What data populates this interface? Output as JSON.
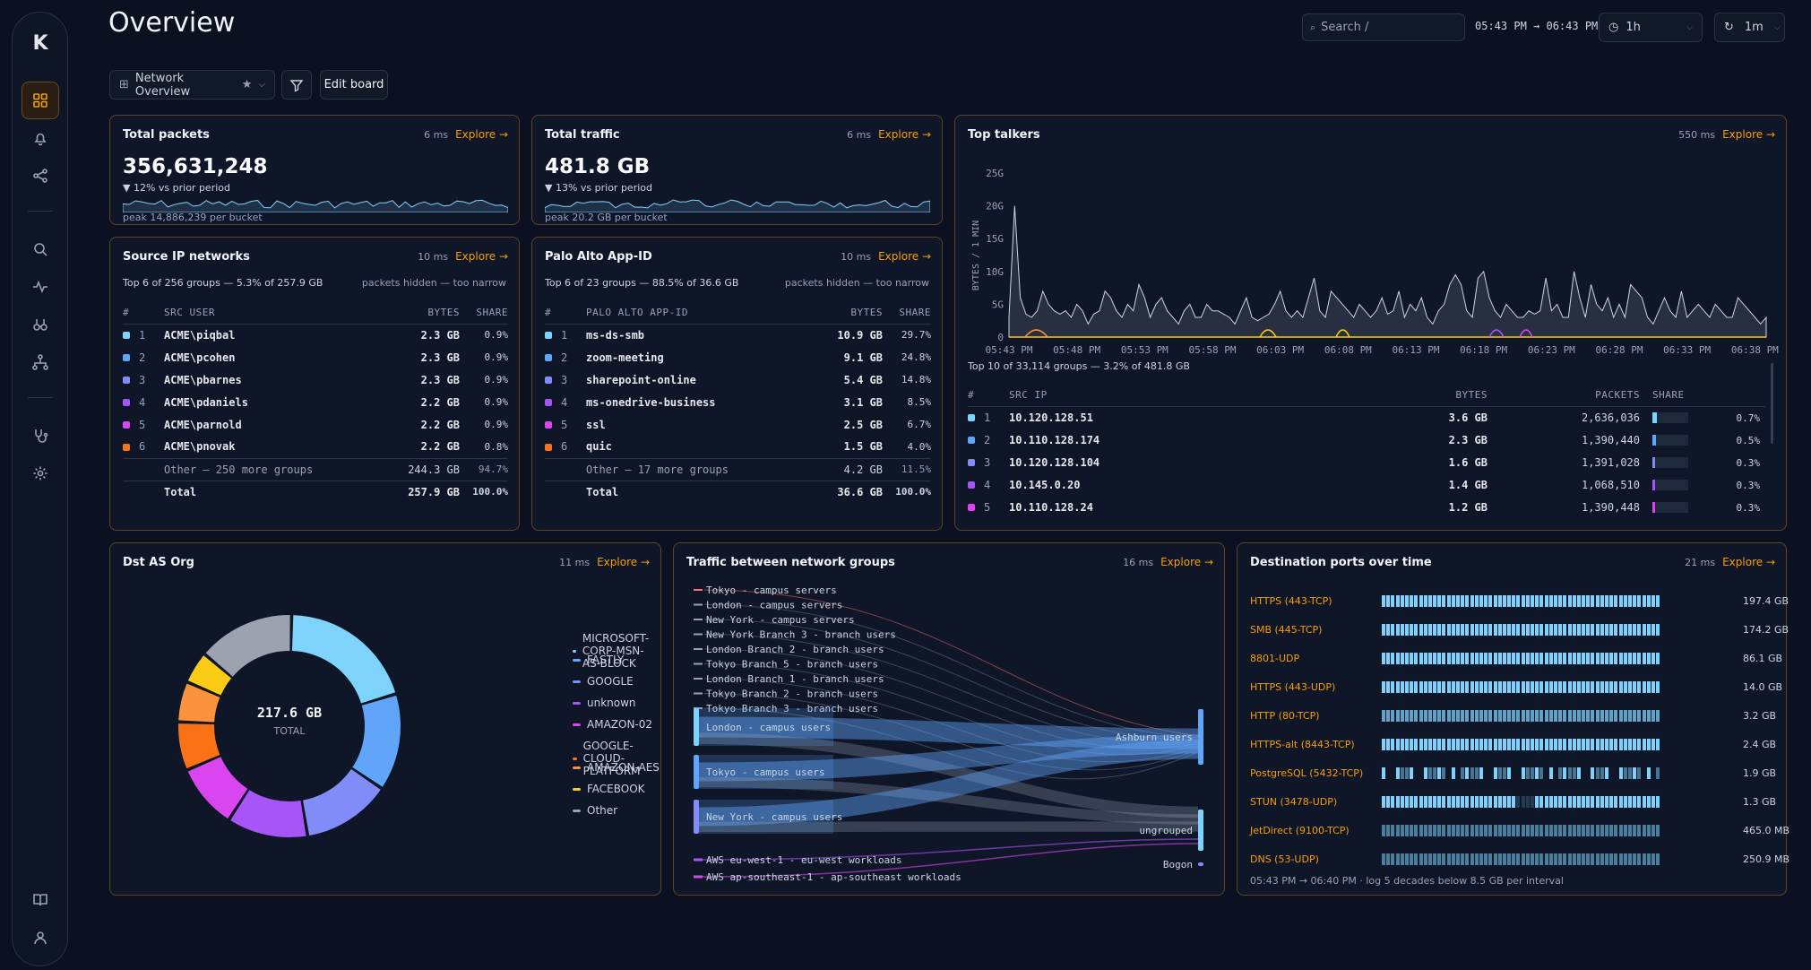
{
  "header": {
    "title": "Overview",
    "search_placeholder": "Search /",
    "time_range": "05:43 PM → 06:43 PM",
    "range_label": "1h",
    "refresh_label": "1m"
  },
  "toolbar": {
    "board_name": "Network Overview",
    "edit_label": "Edit board"
  },
  "colors": {
    "accent": "#f59e0b",
    "series": [
      "#7dd3fc",
      "#60a5fa",
      "#818cf8",
      "#a855f7",
      "#d946ef",
      "#f97316",
      "#fb923c",
      "#facc15",
      "#9ca3af"
    ]
  },
  "total_packets": {
    "title": "Total packets",
    "ms": "6 ms",
    "explore": "Explore →",
    "value": "356,631,248",
    "delta": "▼ 12% vs prior period",
    "peak": "peak 14,886,239 per bucket"
  },
  "total_traffic": {
    "title": "Total traffic",
    "ms": "6 ms",
    "explore": "Explore →",
    "value": "481.8 GB",
    "delta": "▼ 13% vs prior period",
    "peak": "peak 20.2 GB per bucket"
  },
  "source_ip": {
    "title": "Source IP networks",
    "ms": "10 ms",
    "explore": "Explore →",
    "summary": "Top 6 of 256 groups — 5.3% of 257.9 GB",
    "note": "packets hidden — too narrow",
    "columns": [
      "#",
      "SRC USER",
      "BYTES",
      "SHARE"
    ],
    "rows": [
      {
        "n": "1",
        "name": "ACME\\piqbal",
        "bytes": "2.3 GB",
        "share": "0.9%"
      },
      {
        "n": "2",
        "name": "ACME\\pcohen",
        "bytes": "2.3 GB",
        "share": "0.9%"
      },
      {
        "n": "3",
        "name": "ACME\\pbarnes",
        "bytes": "2.3 GB",
        "share": "0.9%"
      },
      {
        "n": "4",
        "name": "ACME\\pdaniels",
        "bytes": "2.2 GB",
        "share": "0.9%"
      },
      {
        "n": "5",
        "name": "ACME\\parnold",
        "bytes": "2.2 GB",
        "share": "0.9%"
      },
      {
        "n": "6",
        "name": "ACME\\pnovak",
        "bytes": "2.2 GB",
        "share": "0.8%"
      }
    ],
    "other": {
      "name": "Other — 250 more groups",
      "bytes": "244.3 GB",
      "share": "94.7%"
    },
    "total": {
      "name": "Total",
      "bytes": "257.9 GB",
      "share": "100.0%"
    }
  },
  "palo_alto": {
    "title": "Palo Alto App-ID",
    "ms": "10 ms",
    "explore": "Explore →",
    "summary": "Top 6 of 23 groups — 88.5% of 36.6 GB",
    "note": "packets hidden — too narrow",
    "columns": [
      "#",
      "PALO ALTO APP-ID",
      "BYTES",
      "SHARE"
    ],
    "rows": [
      {
        "n": "1",
        "name": "ms-ds-smb",
        "bytes": "10.9 GB",
        "share": "29.7%"
      },
      {
        "n": "2",
        "name": "zoom-meeting",
        "bytes": "9.1 GB",
        "share": "24.8%"
      },
      {
        "n": "3",
        "name": "sharepoint-online",
        "bytes": "5.4 GB",
        "share": "14.8%"
      },
      {
        "n": "4",
        "name": "ms-onedrive-business",
        "bytes": "3.1 GB",
        "share": "8.5%"
      },
      {
        "n": "5",
        "name": "ssl",
        "bytes": "2.5 GB",
        "share": "6.7%"
      },
      {
        "n": "6",
        "name": "quic",
        "bytes": "1.5 GB",
        "share": "4.0%"
      }
    ],
    "other": {
      "name": "Other — 17 more groups",
      "bytes": "4.2 GB",
      "share": "11.5%"
    },
    "total": {
      "name": "Total",
      "bytes": "36.6 GB",
      "share": "100.0%"
    }
  },
  "top_talkers": {
    "title": "Top talkers",
    "ms": "550 ms",
    "explore": "Explore →",
    "ylabel": "BYTES / 1 MIN",
    "yticks": [
      "25G",
      "20G",
      "15G",
      "10G",
      "5G",
      "0"
    ],
    "xticks": [
      "05:43 PM",
      "05:48 PM",
      "05:53 PM",
      "05:58 PM",
      "06:03 PM",
      "06:08 PM",
      "06:13 PM",
      "06:18 PM",
      "06:23 PM",
      "06:28 PM",
      "06:33 PM",
      "06:38 PM"
    ],
    "summary": "Top 10 of 33,114 groups — 3.2% of 481.8 GB",
    "columns": [
      "#",
      "SRC IP",
      "BYTES",
      "PACKETS",
      "SHARE"
    ],
    "rows": [
      {
        "n": "1",
        "ip": "10.120.128.51",
        "bytes": "3.6 GB",
        "packets": "2,636,036",
        "share": "0.7%",
        "frac": 0.7
      },
      {
        "n": "2",
        "ip": "10.110.128.174",
        "bytes": "2.3 GB",
        "packets": "1,390,440",
        "share": "0.5%",
        "frac": 0.5
      },
      {
        "n": "3",
        "ip": "10.120.128.104",
        "bytes": "1.6 GB",
        "packets": "1,391,028",
        "share": "0.3%",
        "frac": 0.3
      },
      {
        "n": "4",
        "ip": "10.145.0.20",
        "bytes": "1.4 GB",
        "packets": "1,068,510",
        "share": "0.3%",
        "frac": 0.3
      },
      {
        "n": "5",
        "ip": "10.110.128.24",
        "bytes": "1.2 GB",
        "packets": "1,390,448",
        "share": "0.3%",
        "frac": 0.3
      }
    ]
  },
  "dst_as": {
    "title": "Dst AS Org",
    "ms": "11 ms",
    "explore": "Explore →",
    "center_value": "217.6 GB",
    "center_label": "TOTAL",
    "legend": [
      "MICROSOFT-CORP-MSN-AS-BLOCK",
      "FASTLY",
      "GOOGLE",
      "unknown",
      "AMAZON-02",
      "GOOGLE-CLOUD-PLATFORM",
      "AMAZON-AES",
      "FACEBOOK",
      "Other"
    ]
  },
  "sankey": {
    "title": "Traffic between network groups",
    "ms": "16 ms",
    "explore": "Explore →",
    "small_sources": [
      "Tokyo - campus servers",
      "London - campus servers",
      "New York - campus servers",
      "New York Branch 3 - branch users",
      "London Branch 2 - branch users",
      "Tokyo Branch 5 - branch users",
      "London Branch 1 - branch users",
      "Tokyo Branch 2 - branch users",
      "Tokyo Branch 3 - branch users"
    ],
    "big_sources": [
      "London - campus users",
      "Tokyo - campus users",
      "New York - campus users"
    ],
    "aws_sources": [
      "AWS eu-west-1 - eu-west workloads",
      "AWS ap-southeast-1 - ap-southeast workloads"
    ],
    "targets": [
      "Ashburn users",
      "ungrouped",
      "Bogon"
    ]
  },
  "dst_ports": {
    "title": "Destination ports over time",
    "ms": "21 ms",
    "explore": "Explore →",
    "rows": [
      {
        "label": "HTTPS (443-TCP)",
        "value": "197.4 GB"
      },
      {
        "label": "SMB (445-TCP)",
        "value": "174.2 GB"
      },
      {
        "label": "8801-UDP",
        "value": "86.1 GB"
      },
      {
        "label": "HTTPS (443-UDP)",
        "value": "14.0 GB"
      },
      {
        "label": "HTTP (80-TCP)",
        "value": "3.2 GB"
      },
      {
        "label": "HTTPS-alt (8443-TCP)",
        "value": "2.4 GB"
      },
      {
        "label": "PostgreSQL (5432-TCP)",
        "value": "1.9 GB"
      },
      {
        "label": "STUN (3478-UDP)",
        "value": "1.3 GB"
      },
      {
        "label": "JetDirect (9100-TCP)",
        "value": "465.0 MB"
      },
      {
        "label": "DNS (53-UDP)",
        "value": "250.9 MB"
      }
    ],
    "footer": "05:43 PM → 06:40 PM · log 5 decades below 8.5 GB per interval"
  }
}
